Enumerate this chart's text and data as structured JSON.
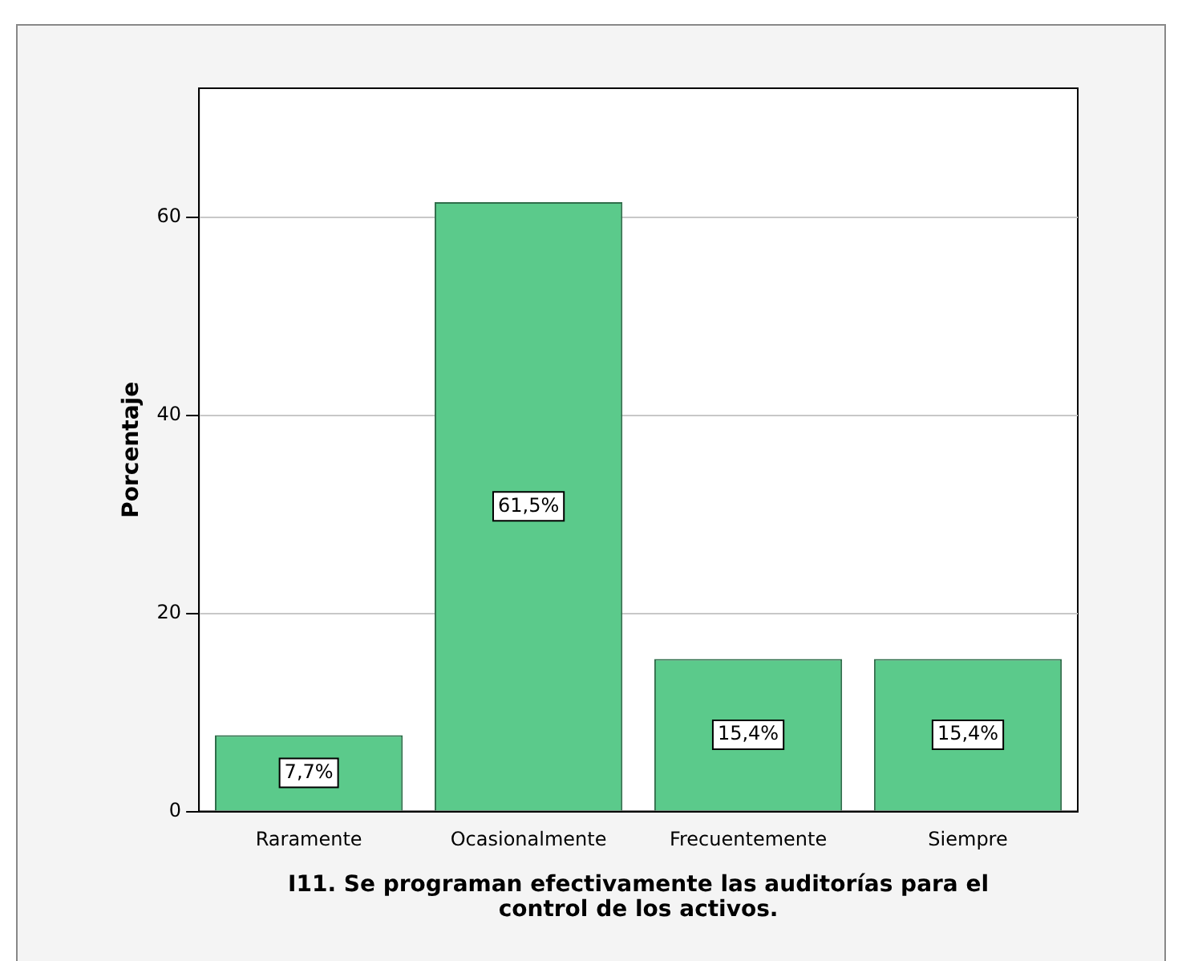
{
  "chart_data": {
    "type": "bar",
    "categories": [
      "Raramente",
      "Ocasionalmente",
      "Frecuentemente",
      "Siempre"
    ],
    "values": [
      7.7,
      61.5,
      15.4,
      15.4
    ],
    "value_labels": [
      "7,7%",
      "61,5%",
      "15,4%",
      "15,4%"
    ],
    "color": "#5bca8b",
    "ylabel": "Porcentaje",
    "xlabel": "I11. Se programan efectivamente las auditorías para el\ncontrol de los activos.",
    "ylim": [
      0,
      73
    ],
    "yticks": [
      0,
      20,
      40,
      60
    ],
    "grid": "y",
    "legend": false
  }
}
